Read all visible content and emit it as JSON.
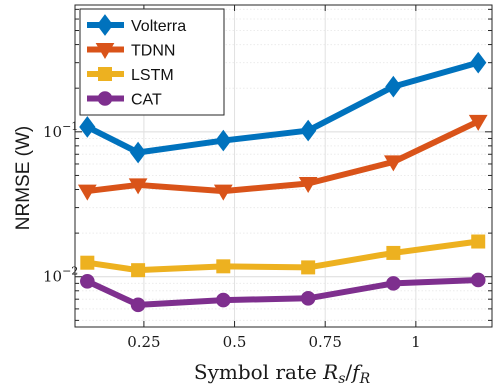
{
  "chart_data": {
    "type": "line",
    "title": "",
    "xlabel": "Symbol rate R_s/f_R",
    "ylabel": "NRMSE (W)",
    "x_ticks": [
      0.25,
      0.5,
      0.75,
      1
    ],
    "x_tick_labels": [
      "0.25",
      "0.5",
      "0.75",
      "1"
    ],
    "y_ticks": [
      0.01,
      0.1
    ],
    "y_tick_labels": [
      {
        "base": "10",
        "exp": "−2"
      },
      {
        "base": "10",
        "exp": "−1"
      }
    ],
    "xlim": [
      0.06,
      1.21
    ],
    "ylim": [
      0.0045,
      0.75
    ],
    "yscale": "log",
    "grid": true,
    "legend_position": "top-left",
    "x": [
      0.094,
      0.234,
      0.469,
      0.703,
      0.938,
      1.172
    ],
    "series": [
      {
        "name": "Volterra",
        "color": "#0072BD",
        "marker": "diamond",
        "values": [
          0.108,
          0.072,
          0.087,
          0.102,
          0.205,
          0.3
        ]
      },
      {
        "name": "TDNN",
        "color": "#D95319",
        "marker": "triangle-down",
        "values": [
          0.039,
          0.043,
          0.039,
          0.044,
          0.062,
          0.118
        ]
      },
      {
        "name": "LSTM",
        "color": "#EDB120",
        "marker": "square",
        "values": [
          0.0125,
          0.0111,
          0.0118,
          0.0116,
          0.0146,
          0.0175
        ]
      },
      {
        "name": "CAT",
        "color": "#7E2F8E",
        "marker": "circle",
        "values": [
          0.0093,
          0.0064,
          0.0069,
          0.0071,
          0.009,
          0.0095
        ]
      }
    ]
  }
}
